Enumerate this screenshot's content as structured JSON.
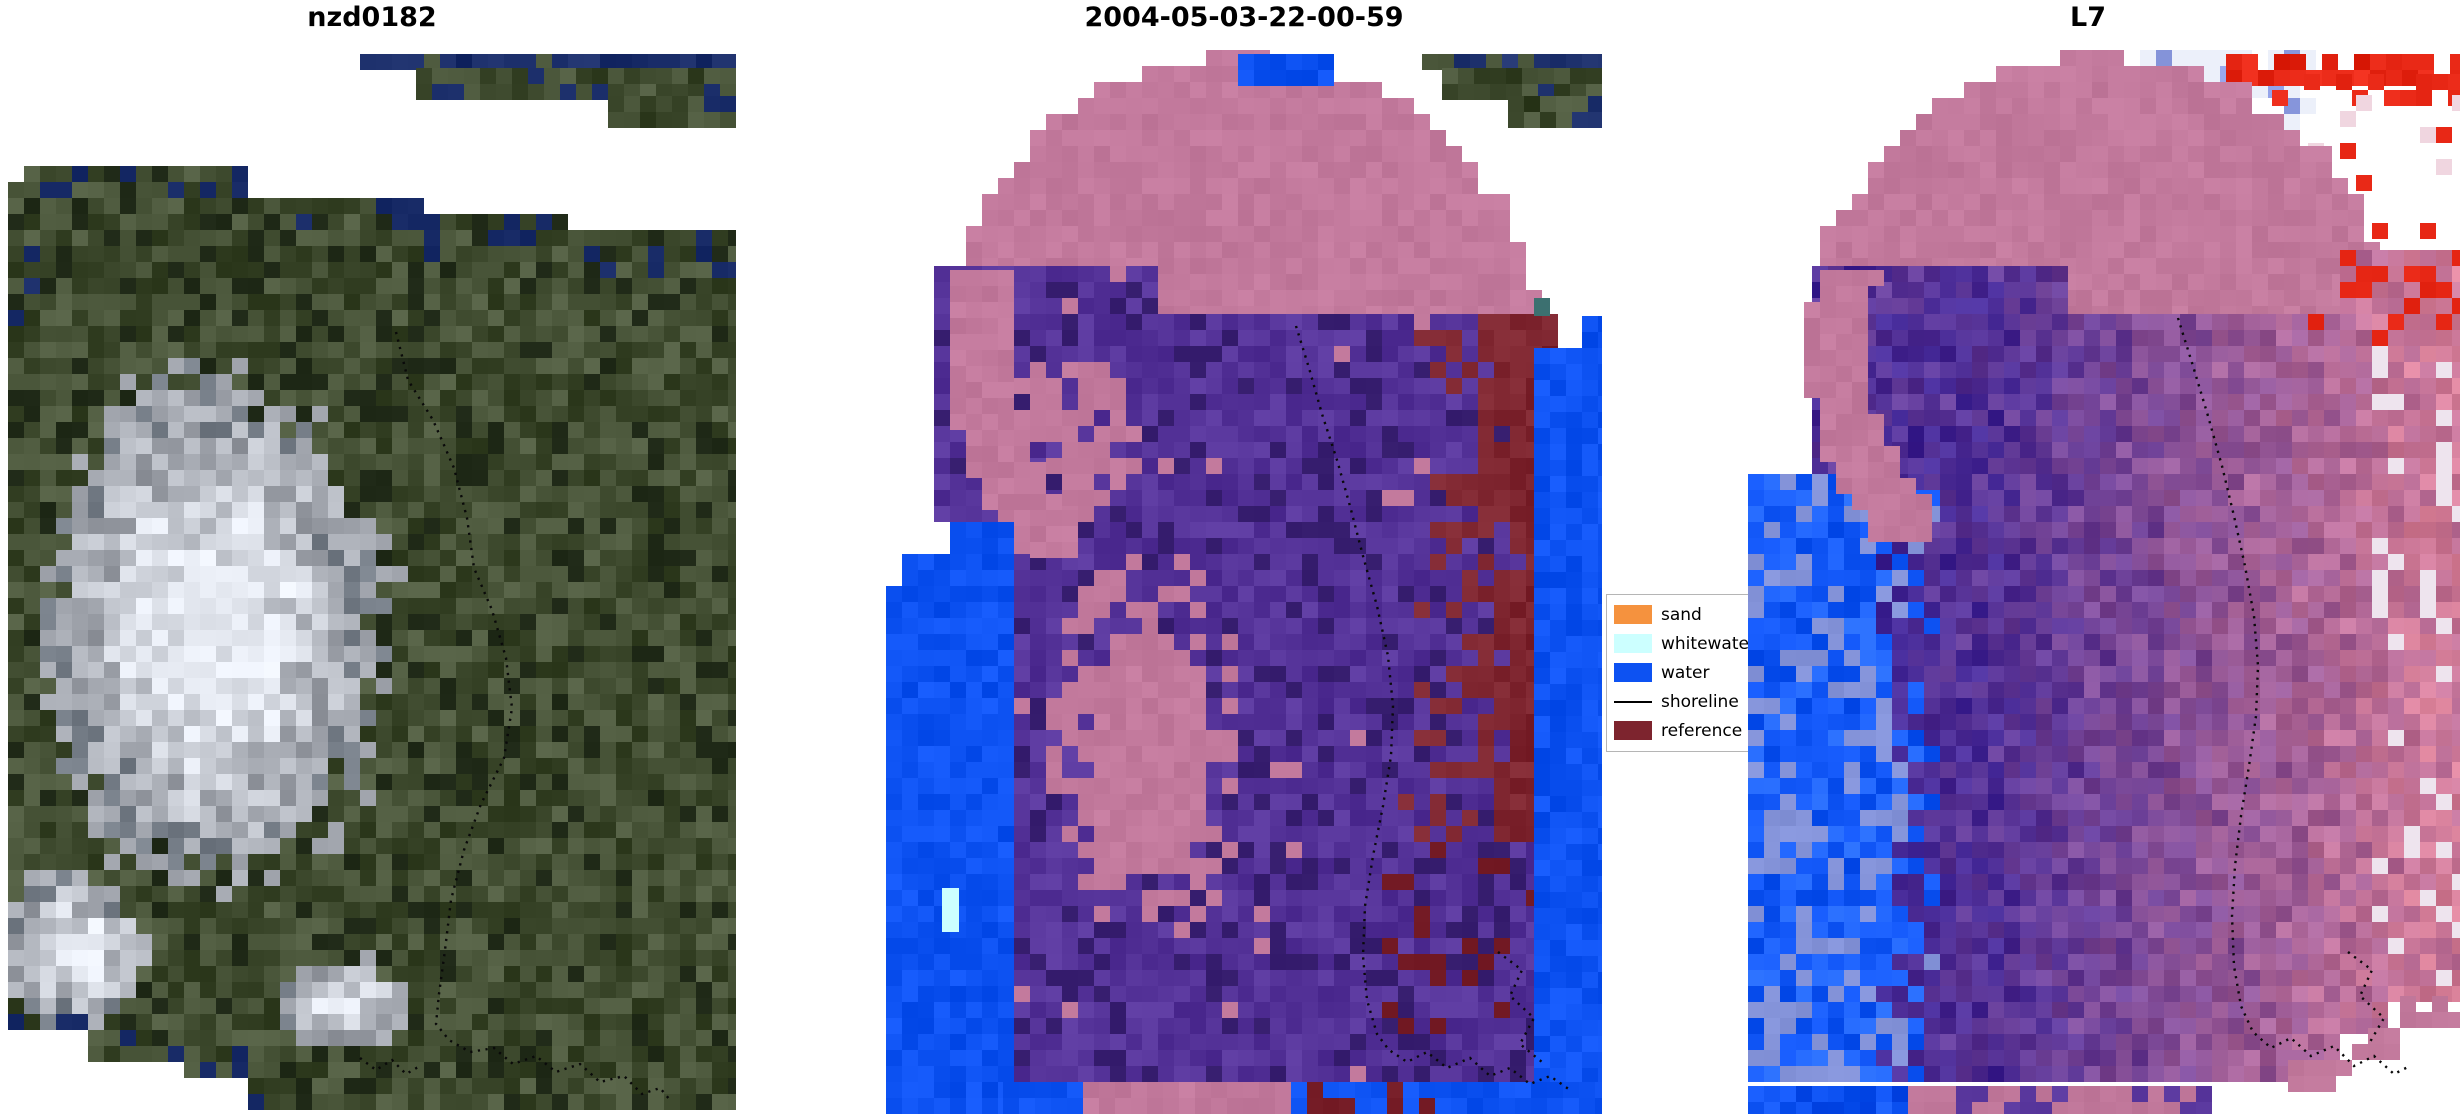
{
  "figure": {
    "panels": [
      {
        "title": "nzd0182"
      },
      {
        "title": "2004-05-03-22-00-59"
      },
      {
        "title": "L7"
      }
    ]
  },
  "legend": {
    "entries": [
      {
        "label": "sand",
        "type": "patch",
        "color": "#f5923e"
      },
      {
        "label": "whitewater",
        "type": "patch",
        "color": "#ccffff"
      },
      {
        "label": "water",
        "type": "patch",
        "color": "#0d52f2"
      },
      {
        "label": "shoreline",
        "type": "line",
        "color": "#000000"
      },
      {
        "label": "reference",
        "type": "patch",
        "color": "#7d242e"
      }
    ]
  },
  "palette": {
    "olive": [
      62,
      74,
      46
    ],
    "olive_dark": [
      40,
      50,
      32
    ],
    "navy": [
      26,
      45,
      105
    ],
    "mauve": [
      195,
      122,
      157
    ],
    "purple": [
      82,
      48,
      150
    ],
    "purple_dark": [
      60,
      35,
      116
    ],
    "water": [
      13,
      82,
      242
    ],
    "whitewater": [
      204,
      255,
      255
    ],
    "darkred": [
      125,
      36,
      46
    ],
    "pink": [
      200,
      118,
      152
    ],
    "red": [
      230,
      38,
      20
    ],
    "lightblue": [
      150,
      165,
      235
    ],
    "cloud": [
      225,
      229,
      236
    ]
  },
  "chart_data": {
    "type": "heatmap",
    "title": "",
    "panels": [
      {
        "title": "nzd0182",
        "content": "true-colour satellite tile: dark olive vegetated land, large white cloud mass left-centre, scattered navy pixels, detached pixel sliver at top right, dotted black reference shoreline running vertically then wiggling along the bottom"
      },
      {
        "title": "2004-05-03-22-00-59",
        "content": "classified scene: blue water along left and right edges and bottom, purple land body, rose-pink cloud-mask circle at top with pink patches inside land, dark-red reference patches right of the dotted shoreline, single cyan whitewater pixel lower-left, true-colour sliver top right"
      },
      {
        "title": "L7",
        "content": "Landsat-7 false-colour scene: purple land blending to pink on the right, noisy blue water lower-left, rose-pink cloud-mask circle at top, bright red streak pixels and pale blue noise upper-right, mauve pixels along clipped lower-right edge, dotted reference shoreline"
      }
    ],
    "legend_entries": [
      {
        "label": "sand",
        "color": "#f5923e"
      },
      {
        "label": "whitewater",
        "color": "#ccffff"
      },
      {
        "label": "water",
        "color": "#0d52f2"
      },
      {
        "label": "shoreline",
        "color": "#000000"
      },
      {
        "label": "reference",
        "color": "#7d242e"
      }
    ],
    "legend_position": "between second and third panel, clipped at its right edge (labels truncated: whitewa / shorelin / referenc)"
  }
}
